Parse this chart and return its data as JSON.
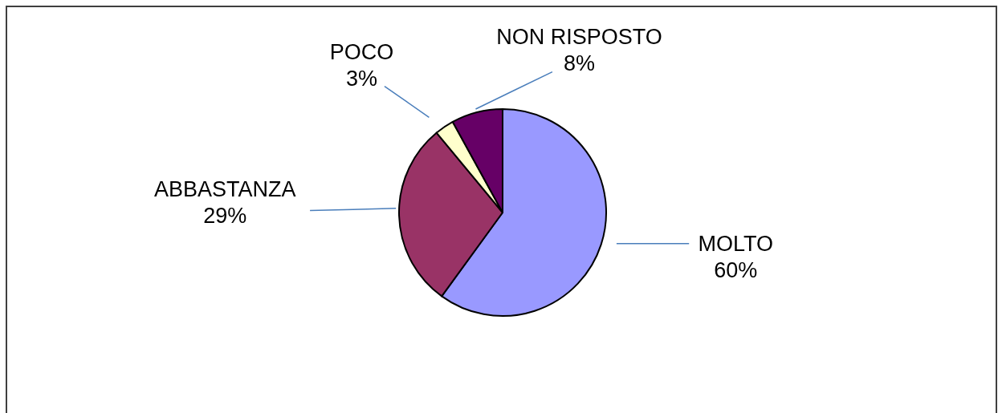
{
  "chart_data": {
    "type": "pie",
    "categories": [
      "MOLTO",
      "ABBASTANZA",
      "POCO",
      "NON RISPOSTO"
    ],
    "values": [
      60,
      29,
      3,
      8
    ],
    "colors": [
      "#9999ff",
      "#993366",
      "#ffffcc",
      "#660066"
    ],
    "value_labels": [
      "60%",
      "29%",
      "3%",
      "8%"
    ]
  }
}
